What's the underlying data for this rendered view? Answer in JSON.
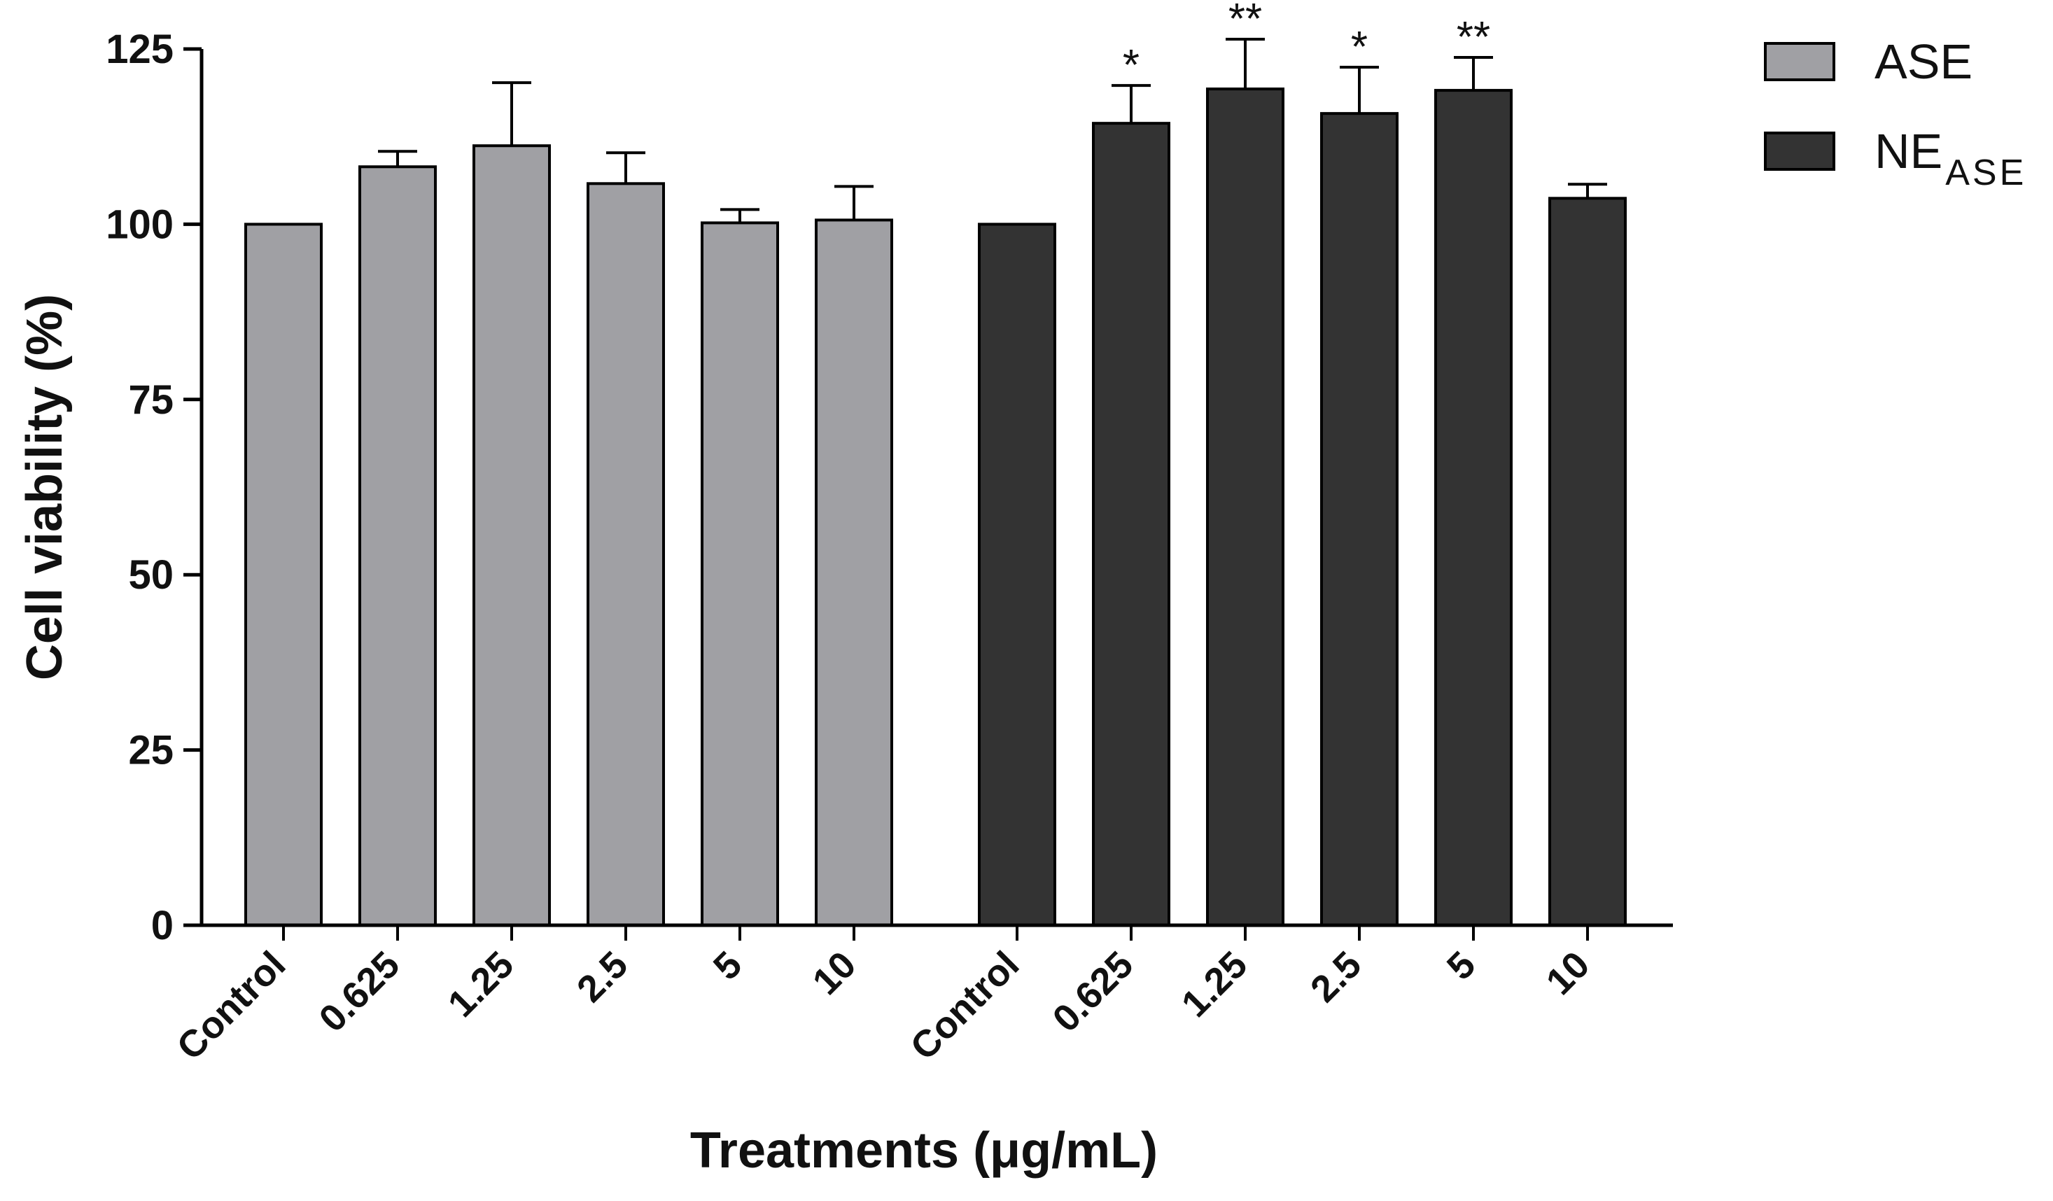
{
  "chart_data": {
    "type": "bar",
    "title": "",
    "xlabel": "Treatments (μg/mL)",
    "ylabel": "Cell viability (%)",
    "ylim": [
      0,
      125
    ],
    "yticks": [
      0,
      25,
      50,
      75,
      100,
      125
    ],
    "grid": false,
    "legend_position": "top-right",
    "categories": [
      "Control",
      "0.625",
      "1.25",
      "2.5",
      "5",
      "10"
    ],
    "series": [
      {
        "name": "ASE",
        "label_main": "ASE",
        "label_sub": "",
        "color": "#a0a0a4",
        "values": [
          100,
          108.2,
          111.2,
          105.8,
          100.2,
          100.6
        ],
        "errors": [
          0,
          2.2,
          9.0,
          4.4,
          1.9,
          4.8
        ],
        "significance": [
          "",
          "",
          "",
          "",
          "",
          ""
        ]
      },
      {
        "name": "NE_ASE",
        "label_main": "NE",
        "label_sub": "ASE",
        "color": "#333333",
        "values": [
          100,
          114.4,
          119.3,
          115.8,
          119.1,
          103.7
        ],
        "errors": [
          0,
          5.4,
          7.1,
          6.6,
          4.7,
          2.0
        ],
        "significance": [
          "",
          "*",
          "**",
          "*",
          "**",
          ""
        ]
      }
    ]
  }
}
